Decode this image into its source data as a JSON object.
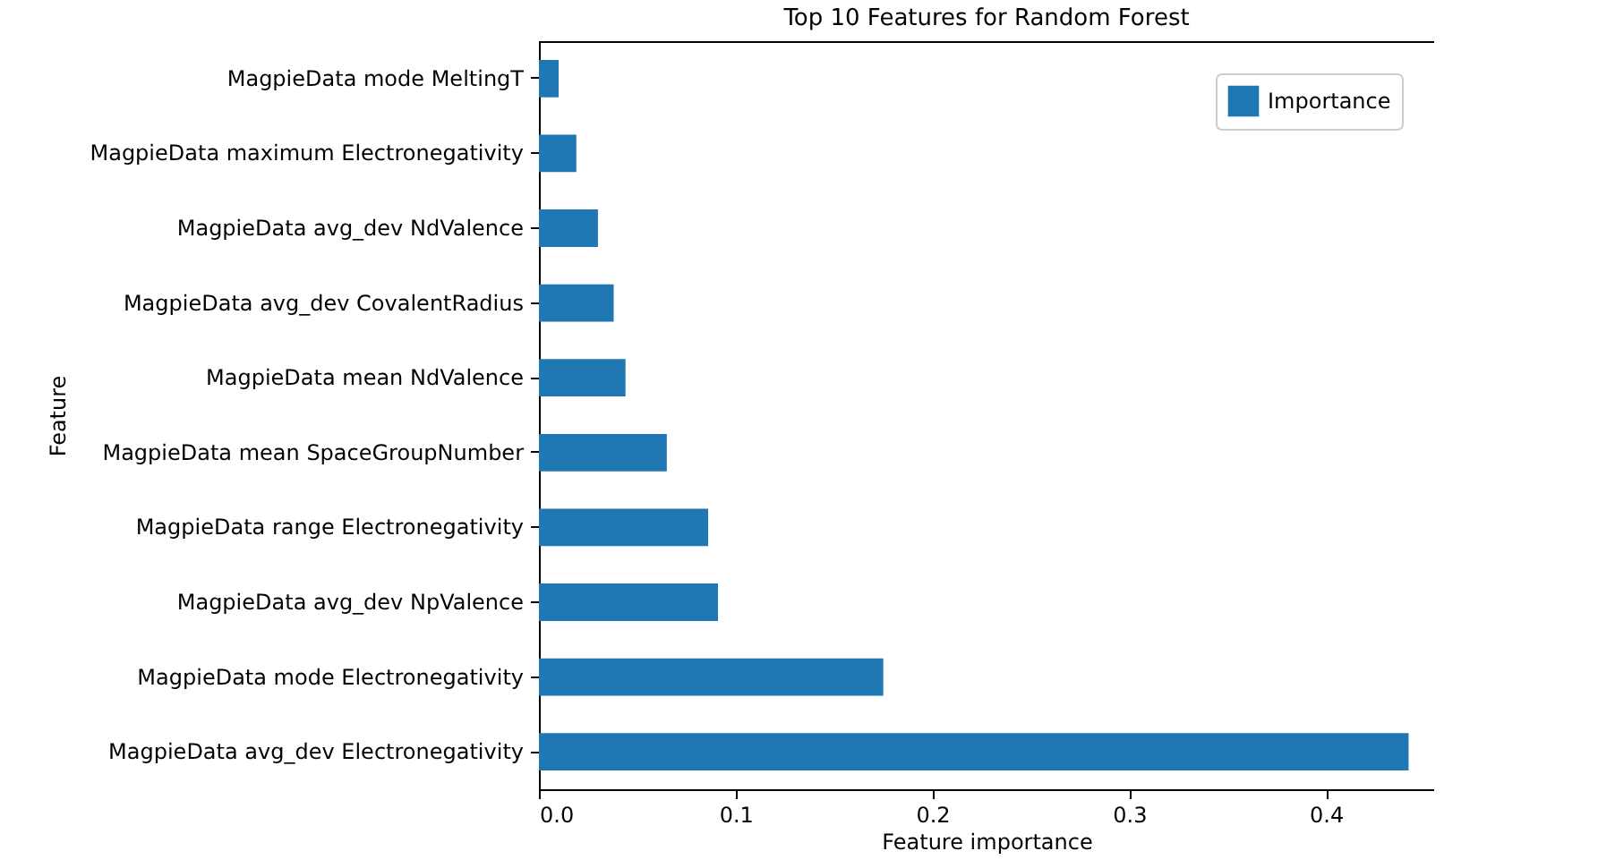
{
  "chart_data": {
    "type": "bar",
    "orientation": "horizontal",
    "title": "Top 10 Features for Random Forest",
    "xlabel": "Feature importance",
    "ylabel": "Feature",
    "categories": [
      "MagpieData mode MeltingT",
      "MagpieData maximum Electronegativity",
      "MagpieData avg_dev NdValence",
      "MagpieData avg_dev CovalentRadius",
      "MagpieData mean NdValence",
      "MagpieData mean SpaceGroupNumber",
      "MagpieData range Electronegativity",
      "MagpieData avg_dev NpValence",
      "MagpieData mode Electronegativity",
      "MagpieData avg_dev Electronegativity"
    ],
    "series": [
      {
        "name": "Importance",
        "color": "#1f77b4",
        "values": [
          0.01,
          0.019,
          0.03,
          0.038,
          0.044,
          0.065,
          0.086,
          0.091,
          0.175,
          0.442
        ]
      }
    ],
    "xlim": [
      0,
      0.455
    ],
    "xticks": [
      {
        "value": 0,
        "label": "0.0"
      },
      0.1,
      0.2,
      0.3,
      0.4
    ],
    "legend": "top right"
  }
}
